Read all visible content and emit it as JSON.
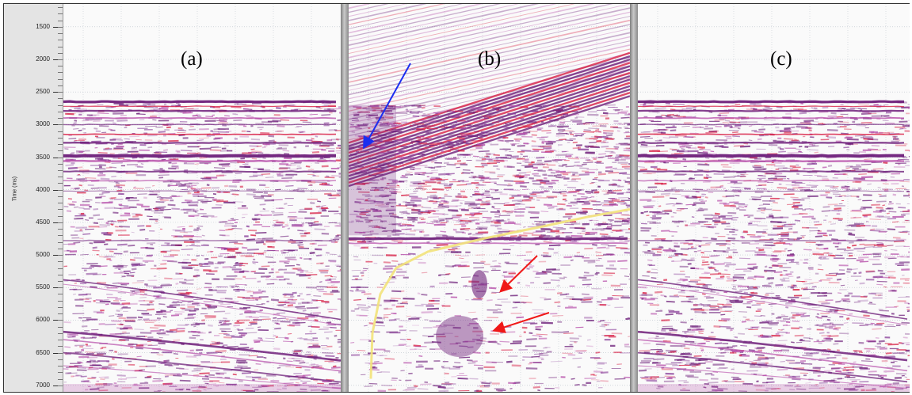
{
  "y_axis": {
    "label": "Time (ms)",
    "ticks": [
      "1500",
      "2000",
      "2500",
      "3000",
      "3500",
      "4000",
      "4500",
      "5000",
      "5500",
      "6000",
      "6500",
      "7000"
    ],
    "range_ms": [
      1150,
      7100
    ]
  },
  "panels": [
    {
      "label": "(a)"
    },
    {
      "label": "(b)"
    },
    {
      "label": "(c)"
    }
  ],
  "colors": {
    "seismic_dark": "#6e1f7a",
    "seismic_mid": "#b54aa8",
    "seismic_red": "#d81f45",
    "annotation_blue": "#1a2ef0",
    "annotation_red": "#f01818",
    "curve_yellow": "#f2e27a"
  },
  "annotations": [
    {
      "panel": "(b)",
      "type": "arrow",
      "color": "blue"
    },
    {
      "panel": "(b)",
      "type": "arrow",
      "color": "red"
    },
    {
      "panel": "(b)",
      "type": "arrow",
      "color": "red"
    }
  ]
}
